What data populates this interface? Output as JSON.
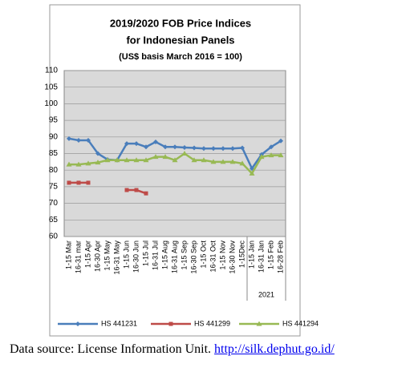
{
  "chart_data": {
    "type": "line",
    "title": "2019/2020 FOB Price Indices",
    "subtitle": "for Indonesian Panels",
    "note": "(US$ basis March 2016 = 100)",
    "categories": [
      "1-15 Mar",
      "16-31 mar",
      "1-15 Apr",
      "16-30 Apr",
      "1-15 May",
      "16-31 May",
      "1-15 Jun",
      "16-30 Jun",
      "1-15 Jul",
      "16-31 Jul",
      "1-15 Aug",
      "16-31 Aug",
      "1-15 Sep",
      "16-30 Sep",
      "1-15 Oct",
      "16-31 Oct",
      "1-15 Nov",
      "16-30 Nov",
      "1-15Dec",
      "1-15 Jan",
      "16-31 Jan",
      "1-15 Feb",
      "16-28 Feb"
    ],
    "series": [
      {
        "name": "HS 441231",
        "color": "#4a7ebb",
        "marker": "diamond",
        "values": [
          89.5,
          89,
          89,
          85,
          83.2,
          83,
          88,
          88,
          87,
          88.5,
          87,
          87,
          86.8,
          86.7,
          86.5,
          86.5,
          86.5,
          86.5,
          86.7,
          80.5,
          84.7,
          87,
          88.8
        ]
      },
      {
        "name": "HS 441299",
        "color": "#be4b48",
        "marker": "square",
        "values": [
          76.2,
          76.2,
          76.2,
          null,
          null,
          null,
          74,
          74,
          73,
          null,
          null,
          null,
          null,
          null,
          null,
          null,
          null,
          null,
          null,
          null,
          null,
          null,
          null
        ]
      },
      {
        "name": "HS 441294",
        "color": "#98b954",
        "marker": "triangle",
        "values": [
          81.7,
          81.7,
          82,
          82.3,
          83,
          83,
          83,
          83,
          83,
          84,
          84,
          83,
          85,
          83,
          83,
          82.5,
          82.5,
          82.5,
          82,
          79,
          84,
          84.5,
          84.5
        ]
      }
    ],
    "ylim": [
      60,
      110
    ],
    "yticks": [
      60,
      65,
      70,
      75,
      80,
      85,
      90,
      95,
      100,
      105,
      110
    ],
    "grid": true,
    "annotations": [
      "2021"
    ],
    "legend": "bottom"
  },
  "source": {
    "text": "Data source: License Information Unit.",
    "link": "http://silk.dephut.go.id/"
  }
}
